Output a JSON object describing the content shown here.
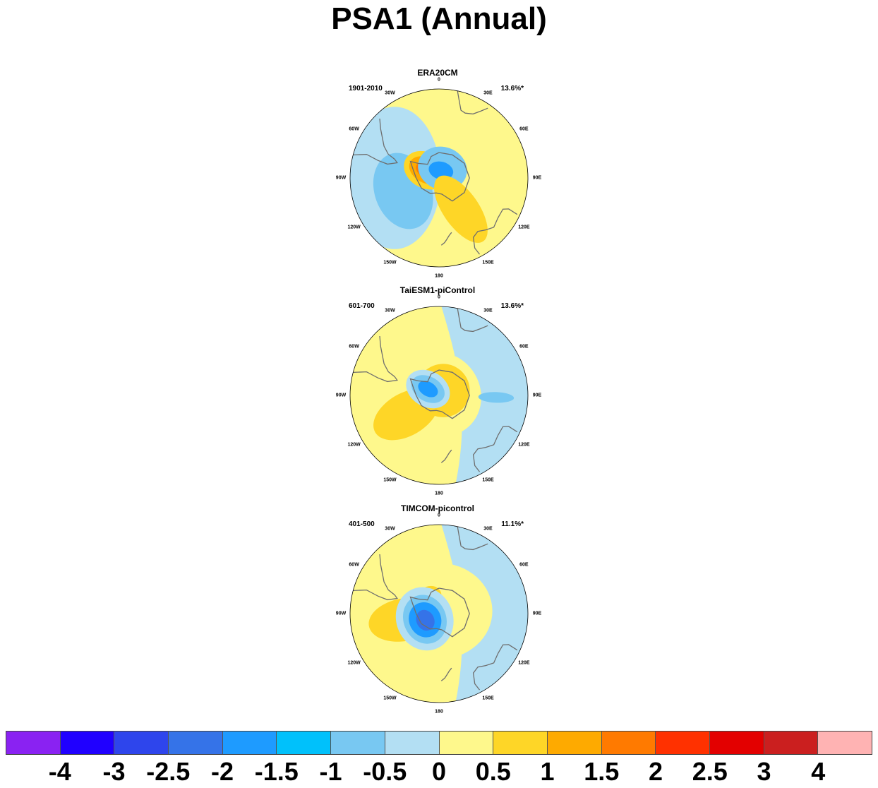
{
  "title": "PSA1 (Annual)",
  "longitude_labels": [
    "0",
    "30E",
    "60E",
    "90E",
    "120E",
    "150E",
    "180",
    "150W",
    "120W",
    "90W",
    "60W",
    "30W"
  ],
  "panels": [
    {
      "name": "ERA20CM",
      "period": "1901-2010",
      "variance": "13.6%*",
      "pattern": [
        {
          "kind": "blob",
          "lon": 270,
          "lat": -55,
          "rx": 0.4,
          "ry": 0.26,
          "level": -0.5
        },
        {
          "kind": "blob",
          "lon": 250,
          "lat": -60,
          "rx": 0.22,
          "ry": 0.16,
          "level": -1
        },
        {
          "kind": "blob",
          "lon": 300,
          "lat": -78,
          "rx": 0.1,
          "ry": 0.13,
          "level": 1
        },
        {
          "kind": "blob",
          "lon": 300,
          "lat": -78,
          "rx": 0.07,
          "ry": 0.1,
          "level": 1.5
        },
        {
          "kind": "blob",
          "lon": 300,
          "lat": -78,
          "rx": 0.04,
          "ry": 0.06,
          "level": 2
        },
        {
          "kind": "blob",
          "lon": 20,
          "lat": -82,
          "rx": 0.14,
          "ry": 0.12,
          "level": -1
        },
        {
          "kind": "blob",
          "lon": 15,
          "lat": -84,
          "rx": 0.07,
          "ry": 0.05,
          "level": -1.5
        },
        {
          "kind": "blob",
          "lon": 145,
          "lat": -60,
          "rx": 0.1,
          "ry": 0.22,
          "level": 1
        }
      ]
    },
    {
      "name": "TaiESM1-piControl",
      "period": "601-700",
      "variance": "13.6%*",
      "pattern": [
        {
          "kind": "halfplane",
          "side": "east",
          "level": -0.5
        },
        {
          "kind": "blob",
          "lon": 60,
          "lat": -88,
          "rx": 0.24,
          "ry": 0.22,
          "level": 0.5
        },
        {
          "kind": "blob",
          "lon": 40,
          "lat": -85,
          "rx": 0.15,
          "ry": 0.15,
          "level": 1
        },
        {
          "kind": "blob",
          "lon": 240,
          "lat": -60,
          "rx": 0.12,
          "ry": 0.2,
          "level": 1
        },
        {
          "kind": "blob",
          "lon": 300,
          "lat": -80,
          "rx": 0.1,
          "ry": 0.13,
          "level": -0.5
        },
        {
          "kind": "blob",
          "lon": 300,
          "lat": -80,
          "rx": 0.07,
          "ry": 0.1,
          "level": -1
        },
        {
          "kind": "blob",
          "lon": 300,
          "lat": -80,
          "rx": 0.04,
          "ry": 0.06,
          "level": -1.5
        },
        {
          "kind": "blob",
          "lon": 92,
          "lat": -45,
          "rx": 0.03,
          "ry": 0.1,
          "level": -1
        }
      ]
    },
    {
      "name": "TIMCOM-picontrol",
      "period": "401-500",
      "variance": "11.1%*",
      "pattern": [
        {
          "kind": "halfplane",
          "side": "east",
          "level": -0.5
        },
        {
          "kind": "blob",
          "lon": 0,
          "lat": -88,
          "rx": 0.3,
          "ry": 0.27,
          "level": 0.5
        },
        {
          "kind": "blob",
          "lon": 330,
          "lat": -75,
          "rx": 0.07,
          "ry": 0.06,
          "level": 1
        },
        {
          "kind": "blob",
          "lon": 260,
          "lat": -62,
          "rx": 0.12,
          "ry": 0.2,
          "level": 1
        },
        {
          "kind": "blob",
          "lon": 250,
          "lat": -78,
          "rx": 0.18,
          "ry": 0.16,
          "level": -0.5
        },
        {
          "kind": "blob",
          "lon": 248,
          "lat": -78,
          "rx": 0.14,
          "ry": 0.12,
          "level": -1
        },
        {
          "kind": "blob",
          "lon": 246,
          "lat": -78,
          "rx": 0.1,
          "ry": 0.09,
          "level": -1.5
        },
        {
          "kind": "blob",
          "lon": 244,
          "lat": -78,
          "rx": 0.06,
          "ry": 0.05,
          "level": -2
        }
      ]
    }
  ],
  "colorbar": {
    "labels": [
      "-4",
      "-3",
      "-2.5",
      "-2",
      "-1.5",
      "-1",
      "-0.5",
      "0",
      "0.5",
      "1",
      "1.5",
      "2",
      "2.5",
      "3",
      "4"
    ],
    "colors": [
      "#8a22f2",
      "#2000ff",
      "#2e45ec",
      "#3573e8",
      "#1e9bff",
      "#00c1fb",
      "#78c8f2",
      "#b3dff3",
      "#fef88c",
      "#fed627",
      "#feaa00",
      "#ff7a00",
      "#ff3100",
      "#e30000",
      "#cb1f1f",
      "#ffb3b3"
    ]
  },
  "level_colors": {
    "-2": "#3573e8",
    "-1.5": "#1e9bff",
    "-1": "#78c8f2",
    "-0.5": "#b3dff3",
    "0": "#fef88c",
    "0.5": "#fef88c",
    "1": "#fed627",
    "1.5": "#feaa00",
    "2": "#ff7a00"
  }
}
